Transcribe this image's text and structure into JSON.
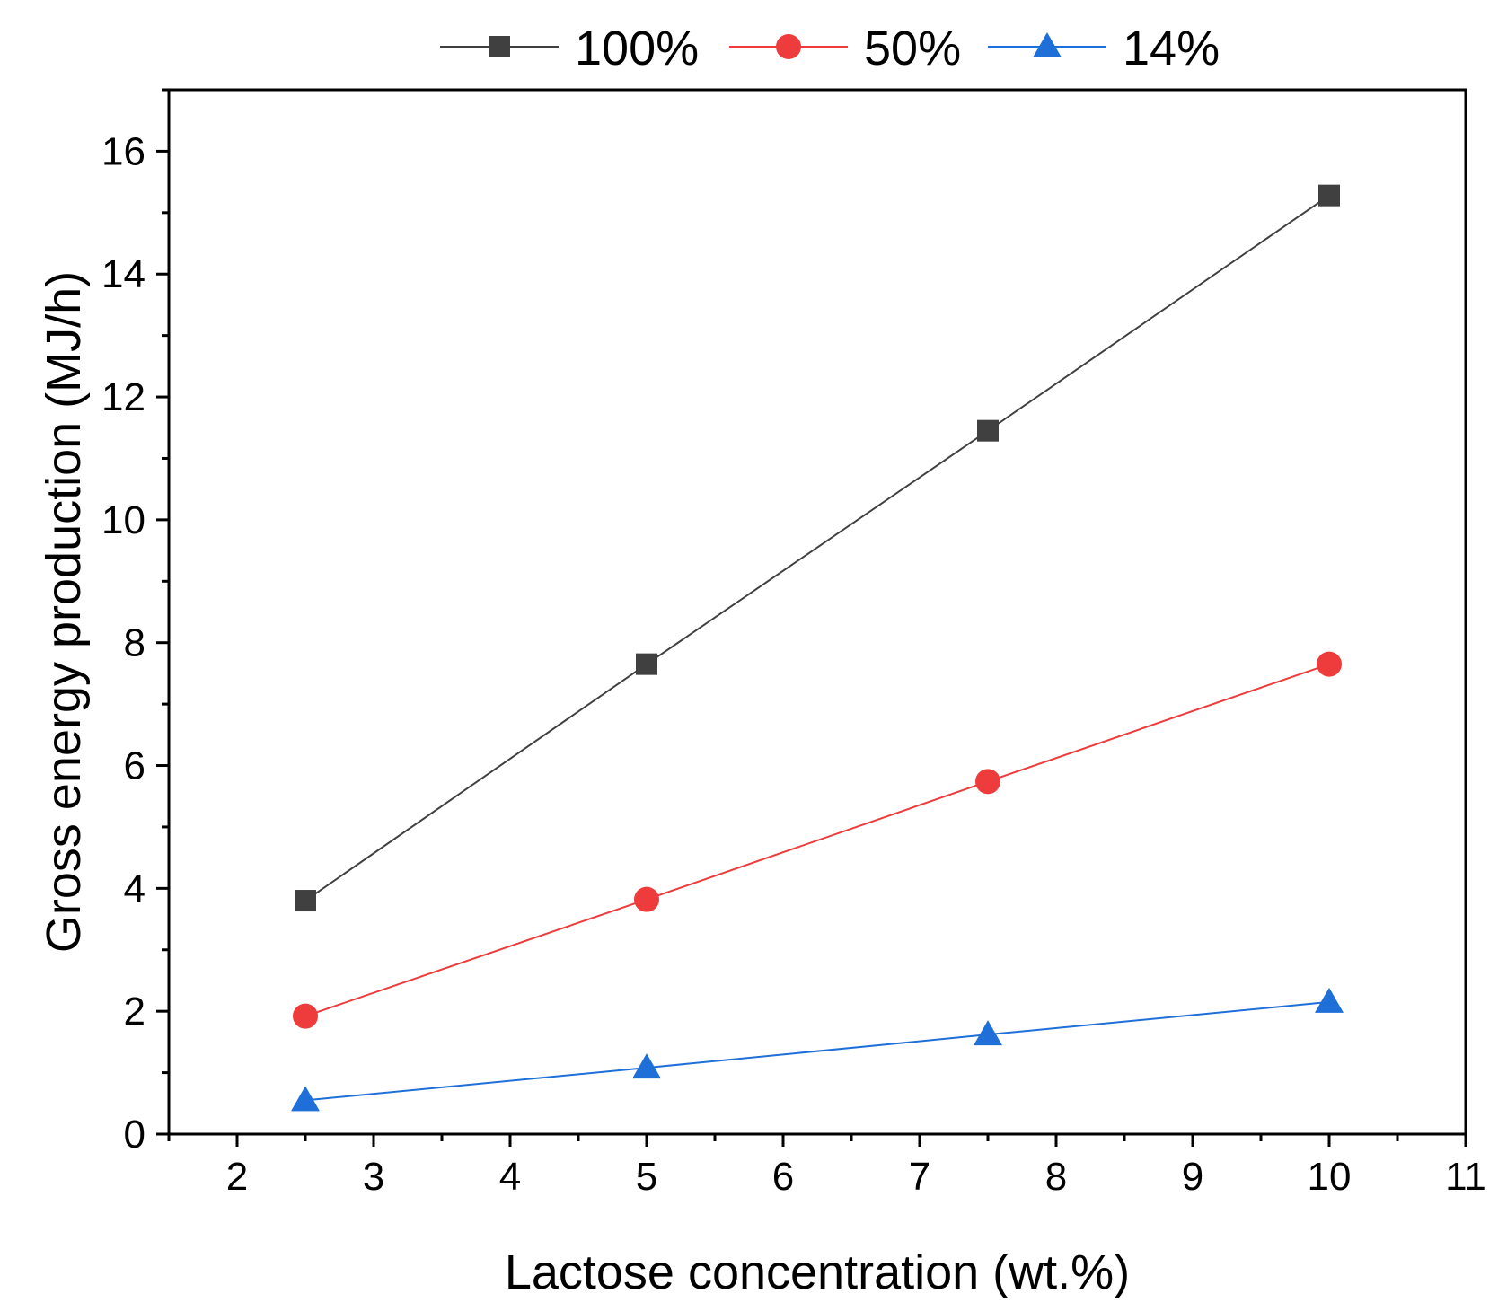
{
  "chart_data": {
    "type": "line",
    "title": "",
    "xlabel": "Lactose concentration (wt.%)",
    "ylabel": "Gross energy production (MJ/h)",
    "xlim": [
      1.5,
      11
    ],
    "ylim": [
      0,
      17
    ],
    "x_ticks": [
      2,
      3,
      4,
      5,
      6,
      7,
      8,
      9,
      10,
      11
    ],
    "y_ticks": [
      0,
      2,
      4,
      6,
      8,
      10,
      12,
      14,
      16
    ],
    "x_tick_labels": [
      "2",
      "3",
      "4",
      "5",
      "6",
      "7",
      "8",
      "9",
      "10",
      "11"
    ],
    "y_tick_labels": [
      "0",
      "2",
      "4",
      "6",
      "8",
      "10",
      "12",
      "14",
      "16"
    ],
    "legend_position": "top",
    "x": [
      2.5,
      5,
      7.5,
      10
    ],
    "series": [
      {
        "name": "100%",
        "values": [
          3.8,
          7.65,
          11.45,
          15.28
        ],
        "color": "#404040",
        "marker": "square"
      },
      {
        "name": "50%",
        "values": [
          1.92,
          3.82,
          5.74,
          7.65
        ],
        "color": "#ee3b3b",
        "marker": "circle"
      },
      {
        "name": "14%",
        "values": [
          0.55,
          1.08,
          1.62,
          2.15
        ],
        "color": "#1f6fd8",
        "marker": "triangle"
      }
    ]
  }
}
